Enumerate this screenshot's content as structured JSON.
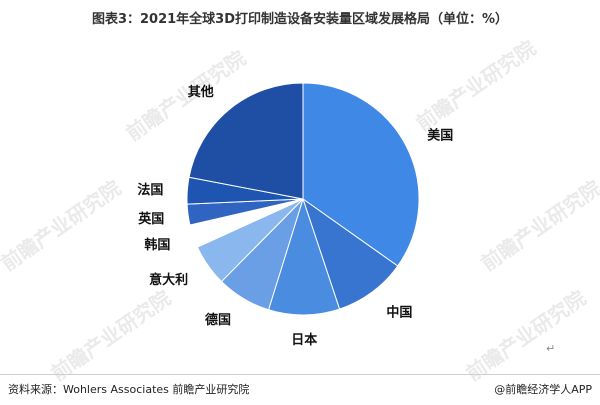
{
  "title": "图表3：2021年全球3D打印制造设备安装量区域发展格局（单位：%）",
  "watermark_text": "前瞻产业研究院",
  "footer": {
    "source": "资料来源：Wohlers Associates 前瞻产业研究院",
    "brand": "@前瞻经济学人APP"
  },
  "return_symbol": "↵",
  "chart_data": {
    "type": "pie",
    "title": "图表3：2021年全球3D打印制造设备安装量区域发展格局（单位：%）",
    "categories": [
      "美国",
      "中国",
      "日本",
      "德国",
      "意大利",
      "韩国",
      "英国",
      "法国",
      "其他"
    ],
    "values": [
      34.8,
      10.1,
      9.9,
      7.6,
      5.8,
      3.2,
      2.9,
      3.7,
      22.0
    ],
    "colors": [
      "#3f88e6",
      "#3875d0",
      "#4a8ce0",
      "#6a9fe6",
      "#8ab7ee",
      "#ffffff",
      "#2f65c0",
      "#1d55b0",
      "#1f4fa5"
    ],
    "start_angle_deg": 0,
    "direction": "clockwise",
    "legend": "none"
  }
}
